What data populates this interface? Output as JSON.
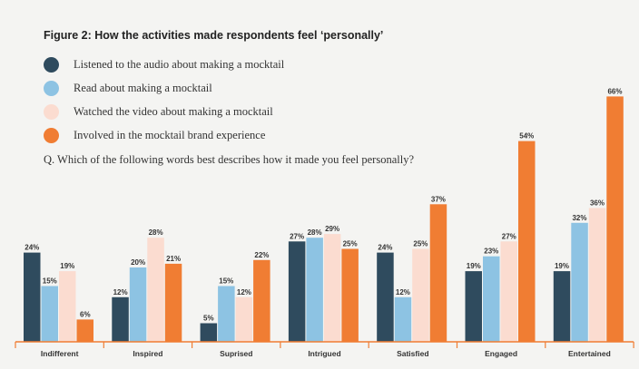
{
  "title": "Figure 2: How the activities made respondents feel ‘personally’",
  "legend": [
    {
      "label": "Listened to the audio about making a mocktail",
      "color": "#2f4b5e"
    },
    {
      "label": "Read about making a mocktail",
      "color": "#8dc3e3"
    },
    {
      "label": "Watched the video about making a mocktail",
      "color": "#fbdcd0"
    },
    {
      "label": "Involved in the mocktail brand experience",
      "color": "#f07d33"
    }
  ],
  "question": "Q. Which of the following words best describes how it made you feel personally?",
  "chart_data": {
    "type": "bar",
    "categories": [
      "Indifferent",
      "Inspired",
      "Suprised",
      "Intrigued",
      "Satisfied",
      "Engaged",
      "Entertained"
    ],
    "series": [
      {
        "name": "Listened to the audio about making a mocktail",
        "values": [
          24,
          12,
          5,
          27,
          24,
          19,
          19
        ],
        "color": "#2f4b5e"
      },
      {
        "name": "Read about making a mocktail",
        "values": [
          15,
          20,
          15,
          28,
          12,
          23,
          32
        ],
        "color": "#8dc3e3"
      },
      {
        "name": "Watched the video about making a mocktail",
        "values": [
          19,
          28,
          12,
          29,
          25,
          27,
          36
        ],
        "color": "#fbdcd0"
      },
      {
        "name": "Involved in the mocktail brand experience",
        "values": [
          6,
          21,
          22,
          25,
          37,
          54,
          66
        ],
        "color": "#f07d33"
      }
    ],
    "value_suffix": "%",
    "axis_color": "#f07d33",
    "grid": false
  }
}
